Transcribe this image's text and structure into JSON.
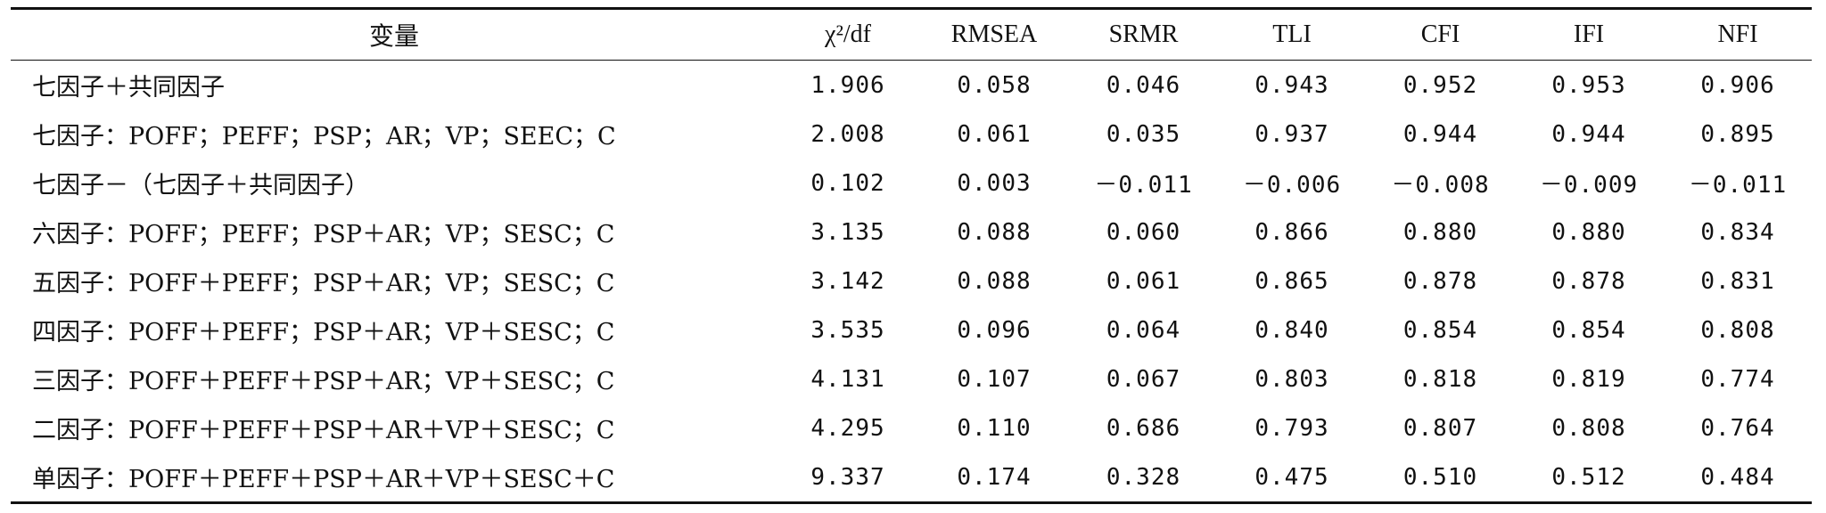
{
  "table": {
    "headers": [
      "变量",
      "χ²/df",
      "RMSEA",
      "SRMR",
      "TLI",
      "CFI",
      "IFI",
      "NFI"
    ],
    "rows": [
      [
        "七因子＋共同因子",
        "1.906",
        "0.058",
        "0.046",
        "0.943",
        "0.952",
        "0.953",
        "0.906"
      ],
      [
        "七因子：POFF；PEFF；PSP；AR；VP；SEEC；C",
        "2.008",
        "0.061",
        "0.035",
        "0.937",
        "0.944",
        "0.944",
        "0.895"
      ],
      [
        "七因子－（七因子＋共同因子）",
        "0.102",
        "0.003",
        "－0.011",
        "－0.006",
        "－0.008",
        "－0.009",
        "－0.011"
      ],
      [
        "六因子：POFF；PEFF；PSP＋AR；VP；SESC；C",
        "3.135",
        "0.088",
        "0.060",
        "0.866",
        "0.880",
        "0.880",
        "0.834"
      ],
      [
        "五因子：POFF＋PEFF；PSP＋AR；VP；SESC；C",
        "3.142",
        "0.088",
        "0.061",
        "0.865",
        "0.878",
        "0.878",
        "0.831"
      ],
      [
        "四因子：POFF＋PEFF；PSP＋AR；VP＋SESC；C",
        "3.535",
        "0.096",
        "0.064",
        "0.840",
        "0.854",
        "0.854",
        "0.808"
      ],
      [
        "三因子：POFF＋PEFF＋PSP＋AR；VP＋SESC；C",
        "4.131",
        "0.107",
        "0.067",
        "0.803",
        "0.818",
        "0.819",
        "0.774"
      ],
      [
        "二因子：POFF＋PEFF＋PSP＋AR＋VP＋SESC；C",
        "4.295",
        "0.110",
        "0.686",
        "0.793",
        "0.807",
        "0.808",
        "0.764"
      ],
      [
        "单因子：POFF＋PEFF＋PSP＋AR＋VP＋SESC＋C",
        "9.337",
        "0.174",
        "0.328",
        "0.475",
        "0.510",
        "0.512",
        "0.484"
      ]
    ]
  }
}
